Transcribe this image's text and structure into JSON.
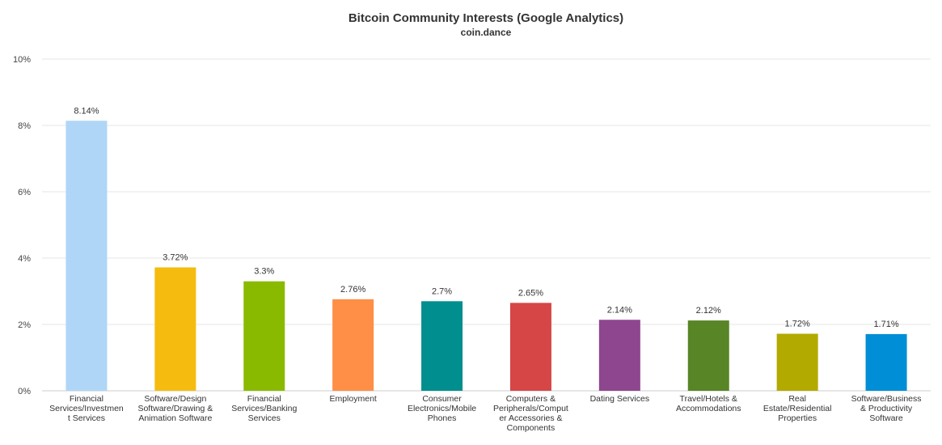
{
  "chart_data": {
    "type": "bar",
    "title": "Bitcoin Community Interests (Google Analytics)",
    "subtitle": "coin.dance",
    "xlabel": "",
    "ylabel": "",
    "ylim": [
      0,
      10
    ],
    "yticks": [
      "0%",
      "2%",
      "4%",
      "6%",
      "8%",
      "10%"
    ],
    "grid": true,
    "legend": "none",
    "categories": [
      [
        "Financial",
        "Services/Investmen",
        "t Services"
      ],
      [
        "Software/Design",
        "Software/Drawing &",
        "Animation Software"
      ],
      [
        "Financial",
        "Services/Banking",
        "Services"
      ],
      [
        "Employment"
      ],
      [
        "Consumer",
        "Electronics/Mobile",
        "Phones"
      ],
      [
        "Computers &",
        "Peripherals/Comput",
        "er Accessories &",
        "Components"
      ],
      [
        "Dating Services"
      ],
      [
        "Travel/Hotels &",
        "Accommodations"
      ],
      [
        "Real",
        "Estate/Residential",
        "Properties"
      ],
      [
        "Software/Business",
        "& Productivity",
        "Software"
      ]
    ],
    "values": [
      8.14,
      3.72,
      3.3,
      2.76,
      2.7,
      2.65,
      2.14,
      2.12,
      1.72,
      1.71
    ],
    "value_labels": [
      "8.14%",
      "3.72%",
      "3.3%",
      "2.76%",
      "2.7%",
      "2.65%",
      "2.14%",
      "2.12%",
      "1.72%",
      "1.71%"
    ],
    "colors": [
      "#afd6f7",
      "#f5bc0f",
      "#8aba00",
      "#ff8e46",
      "#008e8e",
      "#d64646",
      "#8e468e",
      "#588526",
      "#b3aa00",
      "#008ed6"
    ]
  }
}
